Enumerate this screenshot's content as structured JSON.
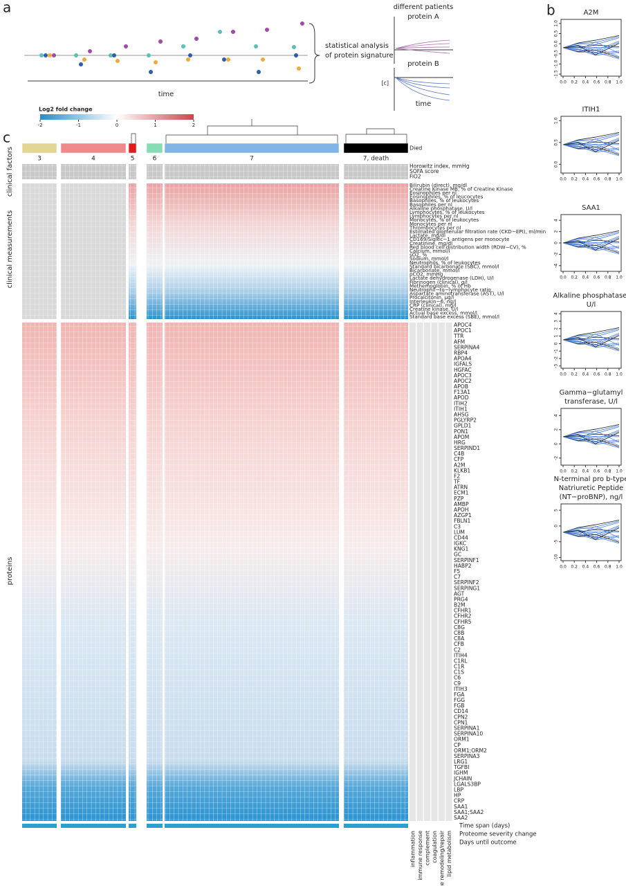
{
  "panel_labels": [
    "a",
    "b",
    "c"
  ],
  "panel_a": {
    "x_label": "time",
    "summary": [
      "statistical analysis",
      "of protein signature"
    ],
    "inset_title": [
      "different patients",
      "protein A"
    ],
    "inset2_title": "protein B",
    "inset2_y": "[c]",
    "inset2_x": "time"
  },
  "colorbar": {
    "title": "Log2 fold change",
    "lim": [
      -2,
      2
    ],
    "ticks": [
      -2,
      -1,
      0,
      1,
      2
    ],
    "colors": [
      "#2b8cc4",
      "#ffffff",
      "#c8474a"
    ]
  },
  "groups": [
    {
      "label": "3",
      "color": "#e3d694"
    },
    {
      "label": "4",
      "color": "#f08a8a"
    },
    {
      "label": "5",
      "color": "#e01b1b"
    },
    {
      "label": "6",
      "color": "#86ddb5"
    },
    {
      "label": "7",
      "color": "#82b4e6"
    },
    {
      "label": "7, death",
      "color": "#000000"
    }
  ],
  "died_label": "Died",
  "block_labels": [
    "clinical factors",
    "clinical measurements",
    "proteins"
  ],
  "clinical_factors": [
    "Horowitz index, mmHg",
    "SOFA score",
    "FiO2"
  ],
  "clinical_measurements": [
    "Bilirubin (direct), mg/dl",
    "Creatine Kinase MB, % of Creatine Kinase",
    "Eosinophiles per nl",
    "Eosinophiles, % of leucocytes",
    "Basophiles, % of leukocytes",
    "Basophiles per nl",
    "Alkaline phosphatase, U/l",
    "Lymphocytes, % of leukocytes",
    "Lymphocytes per nl",
    "Monocytes, % of leukocytes",
    "Monocytes per nl",
    "Thrombocytes per nl",
    "Estimated glomerular filtration rate (CKD−EPI), ml/min",
    "Lactate, mg/dl",
    "CD169/Siglec−1 antigens per monocyte",
    "Creatinine, mg/dl",
    "Red blood cell distribution width (RDW−CV), %",
    "Calcium, mmol/l",
    "sO2, %",
    "Sodium, mmol/l",
    "Neutrophils, % of leukocytes",
    "Standard bicarbonate (SBC), mmol/l",
    "Bicarbonate, mmol/l",
    "pCO2, mmHg",
    "Lactate dehydrogenase (LDH), U/l",
    "Fibrinogen (clinical), g/l",
    "Methemoglobin, % of Hb",
    "Neutrophil−to−lymphocyte ratio",
    "Aspartate aminotransferase (AST), U/l",
    "Procalcitonin, µg/l",
    "Interleukin−6, ng/l",
    "CRP (clinical), mg/l",
    "Creatine kinase, U/l",
    "Actual base excess, mmol/l",
    "Standard base excess (SBE), mmol/l"
  ],
  "proteins": [
    "APOC4",
    "APOC1",
    "TTR",
    "AFM",
    "SERPINA4",
    "RBP4",
    "APOA4",
    "IGFALS",
    "HGFAC",
    "APOC3",
    "APOC2",
    "APOB",
    "F13A1",
    "APOD",
    "ITIH2",
    "ITIH1",
    "AHSG",
    "PGLYRP2",
    "GPLD1",
    "PON1",
    "APOM",
    "HRG",
    "SERPIND1",
    "C4B",
    "CFP",
    "A2M",
    "KLKB1",
    "F2",
    "TF",
    "ATRN",
    "ECM1",
    "PZP",
    "AMBP",
    "APOH",
    "AZGP1",
    "FBLN1",
    "C3",
    "LUM",
    "CD44",
    "IGKC",
    "KNG1",
    "GC",
    "SERPINF1",
    "HABP2",
    "F5",
    "C7",
    "SERPINF2",
    "SERPING1",
    "AGT",
    "PRG4",
    "B2M",
    "CFHR1",
    "CFHR2",
    "CFHR5",
    "C8G",
    "C8B",
    "C8A",
    "CFB",
    "C2",
    "ITIH4",
    "C1RL",
    "C1R",
    "C1S",
    "C6",
    "C9",
    "ITIH3",
    "FGA",
    "FGG",
    "FGB",
    "CD14",
    "CPN2",
    "CPN1",
    "SERPINA1",
    "SERPINA10",
    "ORM1",
    "CP",
    "ORM1;ORM2",
    "SERPINA3",
    "LRG1",
    "TGFBI",
    "IGHM",
    "JCHAIN",
    "LGALS3BP",
    "LBP",
    "HP",
    "CRP",
    "SAA1",
    "SAA1;SAA2",
    "SAA2"
  ],
  "bottom_rows": [
    "Time span (days)",
    "Proteome severity change",
    "Days until outcome"
  ],
  "categories": [
    "inflammation",
    "immune response",
    "complement",
    "coagulation",
    "tissue remodeling/repair",
    "lipid metabolism"
  ],
  "panel_b": {
    "xlim": [
      0,
      1
    ],
    "xticks": [
      {
        "value": 0,
        "label": "0.0"
      },
      {
        "value": 0.2,
        "label": "0.2"
      },
      {
        "value": 0.4,
        "label": "0.4"
      },
      {
        "value": 0.6,
        "label": "0.6"
      },
      {
        "value": 0.8,
        "label": "0.8"
      },
      {
        "value": 1,
        "label": "1.0"
      }
    ],
    "plots": [
      {
        "title": [
          "A2M"
        ],
        "ylim": [
          -1.6,
          1.2
        ],
        "yticks": [
          {
            "value": -1.5,
            "label": "-1.5"
          },
          {
            "value": -1,
            "label": "-1.0"
          },
          {
            "value": -0.5,
            "label": "-0.5"
          },
          {
            "value": 0,
            "label": "0.0"
          },
          {
            "value": 0.5,
            "label": "0.5"
          },
          {
            "value": 1,
            "label": "1.0"
          }
        ]
      },
      {
        "title": [
          "ITIH1"
        ],
        "ylim": [
          -0.2,
          1.1
        ],
        "yticks": [
          {
            "value": 0,
            "label": "0.0"
          },
          {
            "value": 0.5,
            "label": "0.5"
          },
          {
            "value": 1,
            "label": "1.0"
          }
        ]
      },
      {
        "title": [
          "SAA1"
        ],
        "ylim": [
          -5,
          5
        ],
        "yticks": [
          -4,
          -2,
          0,
          2,
          4
        ]
      },
      {
        "title": [
          "Alkaline phosphatase,",
          "U/l"
        ],
        "ylim": [
          -3.3,
          4.3
        ],
        "yticks": [
          -3,
          -2,
          -1,
          0,
          1,
          2,
          3,
          4
        ]
      },
      {
        "title": [
          "Gamma−glutamyl",
          "transferase, U/l"
        ],
        "ylim": [
          -3,
          5
        ],
        "yticks": [
          -2,
          0,
          2,
          4
        ]
      },
      {
        "title": [
          "N-terminal pro b-type",
          "Natriuretic Peptide",
          "(NT−proBNP), ng/l"
        ],
        "ylim": [
          -11,
          7
        ],
        "yticks": [
          -10,
          -5,
          0,
          5
        ]
      }
    ]
  }
}
